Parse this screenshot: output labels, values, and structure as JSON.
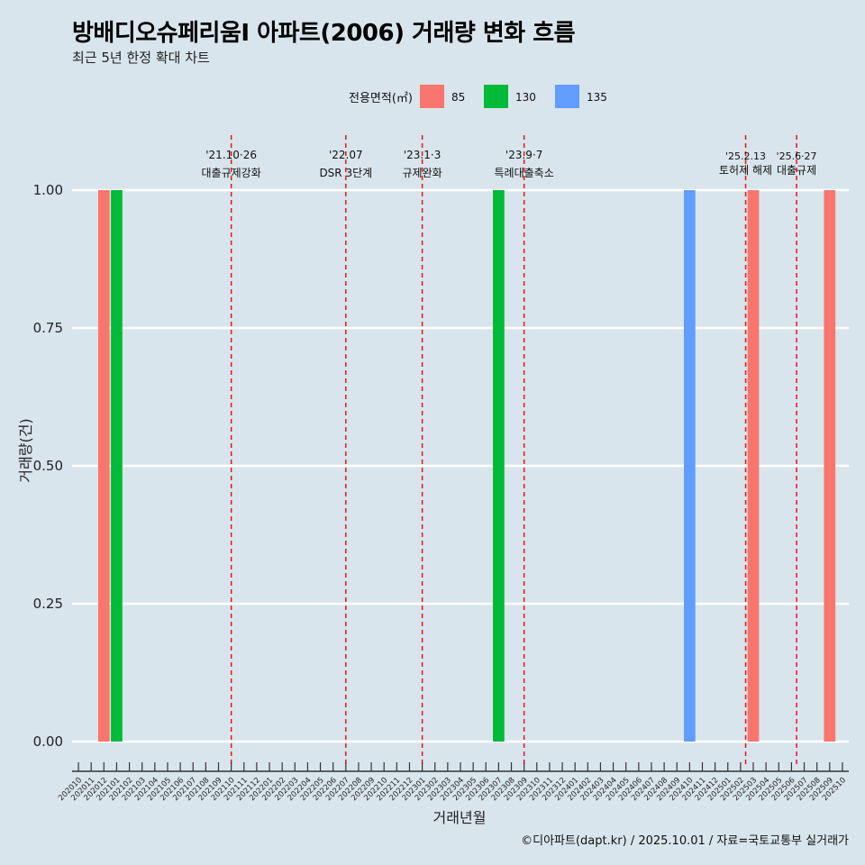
{
  "title": "방배디오슈페리움I 아파트(2006) 거래량 변화 흐름",
  "subtitle": "최근 5년 한정 확대 차트",
  "caption": "©디아파트(dapt.kr) / 2025.10.01 / 자료=국토교통부 실거래가",
  "chart_data": {
    "type": "bar",
    "xlabel": "거래년월",
    "ylabel": "거래량(건)",
    "ylim": [
      0,
      1
    ],
    "yticks": [
      "0.00",
      "0.25",
      "0.50",
      "0.75",
      "1.00"
    ],
    "legend": {
      "title": "전용면적(㎡)",
      "position": "top",
      "entries": [
        {
          "name": "85",
          "color": "#F8766D"
        },
        {
          "name": "130",
          "color": "#00BA38"
        },
        {
          "name": "135",
          "color": "#619CFF"
        }
      ]
    },
    "categories": [
      "202010",
      "202011",
      "202012",
      "202101",
      "202102",
      "202103",
      "202104",
      "202105",
      "202106",
      "202107",
      "202108",
      "202109",
      "202110",
      "202111",
      "202112",
      "202201",
      "202202",
      "202203",
      "202204",
      "202205",
      "202206",
      "202207",
      "202208",
      "202209",
      "202210",
      "202211",
      "202212",
      "202301",
      "202302",
      "202303",
      "202304",
      "202305",
      "202306",
      "202307",
      "202308",
      "202309",
      "202310",
      "202311",
      "202312",
      "202401",
      "202402",
      "202403",
      "202404",
      "202405",
      "202406",
      "202407",
      "202408",
      "202409",
      "202410",
      "202411",
      "202412",
      "202501",
      "202502",
      "202503",
      "202504",
      "202505",
      "202506",
      "202507",
      "202508",
      "202509",
      "202510"
    ],
    "bars": [
      {
        "period": "202012",
        "series": "85",
        "value": 1
      },
      {
        "period": "202101",
        "series": "130",
        "value": 1
      },
      {
        "period": "202307",
        "series": "130",
        "value": 1
      },
      {
        "period": "202410",
        "series": "135",
        "value": 1
      },
      {
        "period": "202503",
        "series": "85",
        "value": 1
      },
      {
        "period": "202509",
        "series": "85",
        "value": 1
      }
    ],
    "events": [
      {
        "at": 12.0,
        "date": "'21.10·26",
        "label": "대출규제강화"
      },
      {
        "at": 21.0,
        "date": "'22.07",
        "label": "DSR 3단계"
      },
      {
        "at": 27.0,
        "date": "'23.1·3",
        "label": "규제완화"
      },
      {
        "at": 35.0,
        "date": "'23.9·7",
        "label": "특례대출축소"
      },
      {
        "at": 52.4,
        "date": "'25.2.13",
        "label": "토허제 해제"
      },
      {
        "at": 56.4,
        "date": "'25.6·27",
        "label": "대출규제"
      }
    ]
  }
}
